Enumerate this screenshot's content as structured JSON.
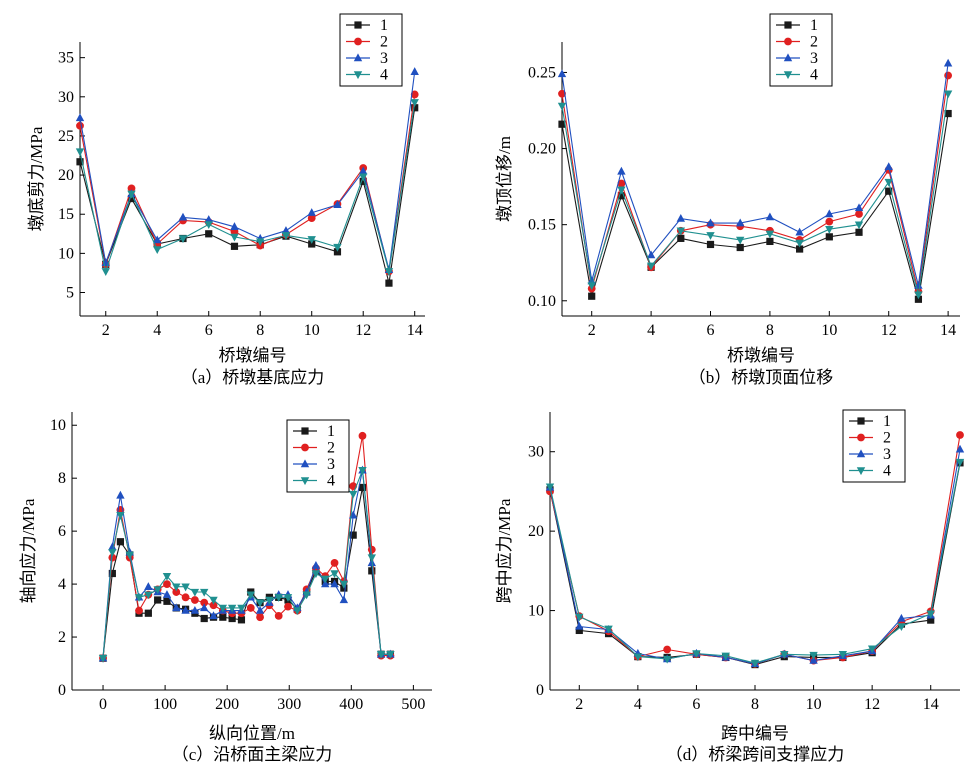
{
  "colors": {
    "1": "#1a1a1a",
    "2": "#e02020",
    "3": "#2050c0",
    "4": "#209090"
  },
  "chart_data": [
    {
      "id": "a",
      "type": "line",
      "caption": "（a）桥墩基底应力",
      "xlabel": "桥墩编号",
      "ylabel": "墩底剪力/MPa",
      "xlim": [
        1,
        14.4
      ],
      "ylim": [
        2,
        37
      ],
      "xticks": [
        2,
        4,
        6,
        8,
        10,
        12,
        14
      ],
      "yticks": [
        5,
        10,
        15,
        20,
        25,
        30,
        35
      ],
      "ytick_labels": [
        "5",
        "10",
        "15",
        "20",
        "25",
        "30",
        "35"
      ],
      "x": [
        1,
        2,
        3,
        4,
        5,
        6,
        7,
        8,
        9,
        10,
        11,
        12,
        13,
        14
      ],
      "legend": {
        "position": "top-center"
      },
      "series": [
        {
          "name": "1",
          "marker": "square",
          "values": [
            21.7,
            8.6,
            17.0,
            11.2,
            11.9,
            12.5,
            10.9,
            11.1,
            12.2,
            11.2,
            10.2,
            19.2,
            6.2,
            28.6
          ]
        },
        {
          "name": "2",
          "marker": "circle",
          "values": [
            26.3,
            8.6,
            18.3,
            11.2,
            14.2,
            14.0,
            12.8,
            11.0,
            12.4,
            14.5,
            16.3,
            20.9,
            7.7,
            30.3
          ]
        },
        {
          "name": "3",
          "marker": "triangle",
          "values": [
            27.3,
            8.8,
            17.6,
            11.7,
            14.6,
            14.3,
            13.4,
            11.9,
            12.9,
            15.2,
            16.2,
            20.5,
            7.9,
            33.2
          ]
        },
        {
          "name": "4",
          "marker": "triangle-down",
          "values": [
            23.0,
            7.7,
            17.6,
            10.5,
            11.9,
            13.7,
            12.1,
            11.5,
            12.3,
            11.8,
            10.8,
            19.8,
            7.7,
            29.3
          ]
        }
      ]
    },
    {
      "id": "b",
      "type": "line",
      "caption": "（b）桥墩顶面位移",
      "xlabel": "桥墩编号",
      "ylabel": "墩顶位移/m",
      "xlim": [
        1,
        14.4
      ],
      "ylim": [
        0.09,
        0.27
      ],
      "xticks": [
        2,
        4,
        6,
        8,
        10,
        12,
        14
      ],
      "yticks": [
        0.1,
        0.15,
        0.2,
        0.25
      ],
      "ytick_labels": [
        "0.10",
        "0.15",
        "0.20",
        "0.25"
      ],
      "x": [
        1,
        2,
        3,
        4,
        5,
        6,
        7,
        8,
        9,
        10,
        11,
        12,
        13,
        14
      ],
      "legend": {
        "position": "top-center"
      },
      "series": [
        {
          "name": "1",
          "marker": "square",
          "values": [
            0.216,
            0.103,
            0.169,
            0.122,
            0.141,
            0.137,
            0.135,
            0.139,
            0.134,
            0.142,
            0.145,
            0.172,
            0.101,
            0.223
          ]
        },
        {
          "name": "2",
          "marker": "circle",
          "values": [
            0.236,
            0.108,
            0.177,
            0.122,
            0.146,
            0.15,
            0.149,
            0.146,
            0.14,
            0.152,
            0.157,
            0.186,
            0.106,
            0.248
          ]
        },
        {
          "name": "3",
          "marker": "triangle",
          "values": [
            0.249,
            0.113,
            0.185,
            0.13,
            0.154,
            0.151,
            0.151,
            0.155,
            0.145,
            0.157,
            0.161,
            0.188,
            0.11,
            0.256
          ]
        },
        {
          "name": "4",
          "marker": "triangle-down",
          "values": [
            0.228,
            0.11,
            0.173,
            0.123,
            0.146,
            0.143,
            0.14,
            0.144,
            0.138,
            0.147,
            0.15,
            0.178,
            0.104,
            0.236
          ]
        }
      ]
    },
    {
      "id": "c",
      "type": "line",
      "caption": "（c）沿桥面主梁应力",
      "xlabel": "纵向位置/m",
      "ylabel": "轴向应力/MPa",
      "xlim": [
        -50,
        530
      ],
      "ylim": [
        0,
        10.5
      ],
      "xticks": [
        0,
        100,
        200,
        300,
        400,
        500
      ],
      "yticks": [
        0,
        2,
        4,
        6,
        8,
        10
      ],
      "ytick_labels": [
        "0",
        "2",
        "4",
        "6",
        "8",
        "10"
      ],
      "x": [
        0,
        15,
        28,
        43,
        58,
        73,
        88,
        103,
        118,
        133,
        148,
        163,
        178,
        193,
        208,
        223,
        238,
        253,
        268,
        283,
        298,
        313,
        328,
        343,
        358,
        373,
        388,
        403,
        418,
        433,
        448,
        463
      ],
      "legend": {
        "position": "top-right"
      },
      "series": [
        {
          "name": "1",
          "marker": "square",
          "values": [
            1.2,
            4.4,
            5.6,
            5.1,
            2.9,
            2.9,
            3.4,
            3.35,
            3.1,
            3.05,
            2.9,
            2.7,
            2.75,
            2.75,
            2.7,
            2.65,
            3.7,
            3.3,
            3.5,
            3.5,
            3.4,
            3.05,
            3.7,
            4.5,
            4.1,
            4.1,
            3.85,
            5.85,
            7.65,
            4.5,
            1.35,
            1.35
          ]
        },
        {
          "name": "2",
          "marker": "circle",
          "values": [
            1.2,
            5.0,
            6.8,
            5.0,
            3.0,
            3.6,
            3.8,
            4.0,
            3.7,
            3.5,
            3.4,
            3.3,
            3.2,
            3.0,
            2.9,
            2.9,
            3.1,
            2.75,
            3.2,
            2.8,
            3.15,
            3.0,
            3.8,
            4.6,
            4.3,
            4.8,
            4.1,
            7.7,
            9.6,
            5.3,
            1.3,
            1.3
          ]
        },
        {
          "name": "3",
          "marker": "triangle",
          "values": [
            1.2,
            5.4,
            7.35,
            5.2,
            3.5,
            3.9,
            3.7,
            3.6,
            3.1,
            3.0,
            3.0,
            3.1,
            2.8,
            3.0,
            3.0,
            3.0,
            3.5,
            3.0,
            3.3,
            3.6,
            3.6,
            3.1,
            3.7,
            4.7,
            4.0,
            4.0,
            3.4,
            6.6,
            8.3,
            4.8,
            1.35,
            1.35
          ]
        },
        {
          "name": "4",
          "marker": "triangle-down",
          "values": [
            1.2,
            5.2,
            6.6,
            5.1,
            3.5,
            3.6,
            3.8,
            4.3,
            3.9,
            3.9,
            3.7,
            3.7,
            3.4,
            3.1,
            3.1,
            3.1,
            3.6,
            3.3,
            3.4,
            3.5,
            3.5,
            3.0,
            3.6,
            4.4,
            4.2,
            4.4,
            4.0,
            7.4,
            8.3,
            5.0,
            1.35,
            1.35
          ]
        }
      ]
    },
    {
      "id": "d",
      "type": "line",
      "caption": "（d）桥梁跨间支撑应力",
      "xlabel": "跨中编号",
      "ylabel": "跨中应力/MPa",
      "xlim": [
        1,
        15
      ],
      "ylim": [
        0,
        35
      ],
      "xticks": [
        2,
        4,
        6,
        8,
        10,
        12,
        14
      ],
      "yticks": [
        0,
        10,
        20,
        30
      ],
      "ytick_labels": [
        "0",
        "10",
        "20",
        "30"
      ],
      "x": [
        1,
        2,
        3,
        4,
        5,
        6,
        7,
        8,
        9,
        10,
        11,
        12,
        13,
        14,
        15
      ],
      "legend": {
        "position": "top-right"
      },
      "series": [
        {
          "name": "1",
          "marker": "square",
          "values": [
            25.2,
            7.5,
            7.1,
            4.2,
            4.1,
            4.5,
            4.1,
            3.2,
            4.2,
            4.1,
            4.1,
            4.7,
            8.3,
            8.8,
            28.6
          ]
        },
        {
          "name": "2",
          "marker": "circle",
          "values": [
            25.0,
            9.3,
            7.4,
            4.2,
            5.1,
            4.5,
            4.1,
            3.3,
            4.5,
            3.7,
            4.1,
            4.9,
            8.6,
            9.9,
            32.1
          ]
        },
        {
          "name": "3",
          "marker": "triangle",
          "values": [
            25.5,
            8.0,
            7.6,
            4.6,
            3.9,
            4.6,
            4.1,
            3.3,
            4.5,
            3.7,
            4.3,
            4.9,
            9.0,
            9.4,
            30.3
          ]
        },
        {
          "name": "4",
          "marker": "triangle-down",
          "values": [
            25.6,
            9.2,
            7.7,
            4.2,
            3.9,
            4.6,
            4.3,
            3.4,
            4.5,
            4.4,
            4.5,
            5.2,
            8.0,
            9.6,
            28.7
          ]
        }
      ]
    }
  ]
}
